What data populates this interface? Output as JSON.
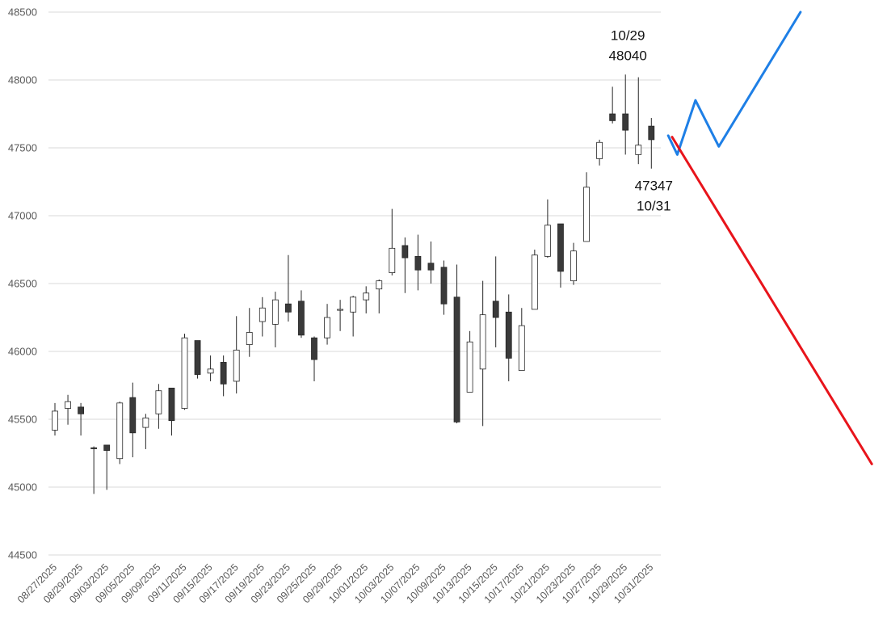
{
  "chart_data": {
    "type": "candlestick",
    "title": "",
    "xlabel": "",
    "ylabel": "",
    "ylim": [
      44500,
      48500
    ],
    "y_ticks": [
      44500,
      45000,
      45500,
      46000,
      46500,
      47000,
      47500,
      48000,
      48500
    ],
    "grid": "horizontal",
    "colors": {
      "up_fill": "#ffffff",
      "down_fill": "#3a3a3a",
      "candle_edge": "#262626",
      "grid": "#d9d9d9",
      "blue_path": "#1e7fe6",
      "red_path": "#e8141b"
    },
    "x_tick_labels": [
      "08/27/2025",
      "08/29/2025",
      "09/03/2025",
      "09/05/2025",
      "09/09/2025",
      "09/11/2025",
      "09/15/2025",
      "09/17/2025",
      "09/19/2025",
      "09/23/2025",
      "09/25/2025",
      "09/29/2025",
      "10/01/2025",
      "10/03/2025",
      "10/07/2025",
      "10/09/2025",
      "10/13/2025",
      "10/15/2025",
      "10/17/2025",
      "10/21/2025",
      "10/23/2025",
      "10/27/2025",
      "10/29/2025",
      "10/31/2025"
    ],
    "candles": [
      {
        "o": 45420,
        "h": 45620,
        "l": 45380,
        "c": 45560
      },
      {
        "o": 45580,
        "h": 45680,
        "l": 45460,
        "c": 45630
      },
      {
        "o": 45590,
        "h": 45620,
        "l": 45380,
        "c": 45540
      },
      {
        "o": 45290,
        "h": 45300,
        "l": 44950,
        "c": 45285
      },
      {
        "o": 45310,
        "h": 45310,
        "l": 44980,
        "c": 45270
      },
      {
        "o": 45210,
        "h": 45630,
        "l": 45170,
        "c": 45620
      },
      {
        "o": 45660,
        "h": 45770,
        "l": 45220,
        "c": 45400
      },
      {
        "o": 45440,
        "h": 45540,
        "l": 45280,
        "c": 45510
      },
      {
        "o": 45540,
        "h": 45760,
        "l": 45430,
        "c": 45710
      },
      {
        "o": 45730,
        "h": 45730,
        "l": 45380,
        "c": 45490
      },
      {
        "o": 45580,
        "h": 46130,
        "l": 45570,
        "c": 46100
      },
      {
        "o": 46080,
        "h": 46080,
        "l": 45800,
        "c": 45830
      },
      {
        "o": 45840,
        "h": 45970,
        "l": 45780,
        "c": 45870
      },
      {
        "o": 45920,
        "h": 45970,
        "l": 45670,
        "c": 45760
      },
      {
        "o": 45780,
        "h": 46260,
        "l": 45690,
        "c": 46010
      },
      {
        "o": 46050,
        "h": 46320,
        "l": 45960,
        "c": 46140
      },
      {
        "o": 46220,
        "h": 46400,
        "l": 46110,
        "c": 46320
      },
      {
        "o": 46200,
        "h": 46440,
        "l": 46030,
        "c": 46380
      },
      {
        "o": 46350,
        "h": 46710,
        "l": 46220,
        "c": 46290
      },
      {
        "o": 46370,
        "h": 46450,
        "l": 46100,
        "c": 46120
      },
      {
        "o": 46100,
        "h": 46110,
        "l": 45780,
        "c": 45940
      },
      {
        "o": 46100,
        "h": 46350,
        "l": 46050,
        "c": 46250
      },
      {
        "o": 46310,
        "h": 46380,
        "l": 46150,
        "c": 46310
      },
      {
        "o": 46290,
        "h": 46410,
        "l": 46110,
        "c": 46400
      },
      {
        "o": 46380,
        "h": 46480,
        "l": 46280,
        "c": 46430
      },
      {
        "o": 46460,
        "h": 46530,
        "l": 46280,
        "c": 46520
      },
      {
        "o": 46580,
        "h": 47050,
        "l": 46560,
        "c": 46760
      },
      {
        "o": 46780,
        "h": 46840,
        "l": 46430,
        "c": 46690
      },
      {
        "o": 46700,
        "h": 46860,
        "l": 46450,
        "c": 46600
      },
      {
        "o": 46650,
        "h": 46810,
        "l": 46500,
        "c": 46600
      },
      {
        "o": 46620,
        "h": 46670,
        "l": 46270,
        "c": 46350
      },
      {
        "o": 46400,
        "h": 46640,
        "l": 45470,
        "c": 45480
      },
      {
        "o": 45700,
        "h": 46150,
        "l": 45700,
        "c": 46070
      },
      {
        "o": 45870,
        "h": 46520,
        "l": 45450,
        "c": 46270
      },
      {
        "o": 46370,
        "h": 46700,
        "l": 46030,
        "c": 46250
      },
      {
        "o": 46290,
        "h": 46420,
        "l": 45780,
        "c": 45950
      },
      {
        "o": 45860,
        "h": 46320,
        "l": 45860,
        "c": 46190
      },
      {
        "o": 46310,
        "h": 46750,
        "l": 46310,
        "c": 46710
      },
      {
        "o": 46700,
        "h": 47120,
        "l": 46690,
        "c": 46930
      },
      {
        "o": 46940,
        "h": 46940,
        "l": 46470,
        "c": 46590
      },
      {
        "o": 46520,
        "h": 46800,
        "l": 46490,
        "c": 46740
      },
      {
        "o": 46810,
        "h": 47320,
        "l": 46810,
        "c": 47210
      },
      {
        "o": 47420,
        "h": 47560,
        "l": 47370,
        "c": 47540
      },
      {
        "o": 47750,
        "h": 47950,
        "l": 47680,
        "c": 47700
      },
      {
        "o": 47750,
        "h": 48040,
        "l": 47450,
        "c": 47630
      },
      {
        "o": 47450,
        "h": 48020,
        "l": 47380,
        "c": 47520
      },
      {
        "o": 47660,
        "h": 47720,
        "l": 47347,
        "c": 47560
      }
    ],
    "annotations": [
      {
        "candle": 44,
        "lines": [
          "10/29",
          "48040"
        ],
        "position": "above"
      },
      {
        "candle": 46,
        "lines": [
          "47347",
          "10/31"
        ],
        "position": "below"
      }
    ],
    "projection_paths": [
      {
        "name": "blue",
        "color": "#1e7fe6",
        "points": [
          [
            47.3,
            47590
          ],
          [
            48.0,
            47450
          ],
          [
            49.4,
            47850
          ],
          [
            51.2,
            47510
          ],
          [
            57.5,
            48500
          ]
        ]
      },
      {
        "name": "red",
        "color": "#e8141b",
        "points": [
          [
            47.6,
            47580
          ],
          [
            63.0,
            45170
          ]
        ]
      }
    ]
  }
}
